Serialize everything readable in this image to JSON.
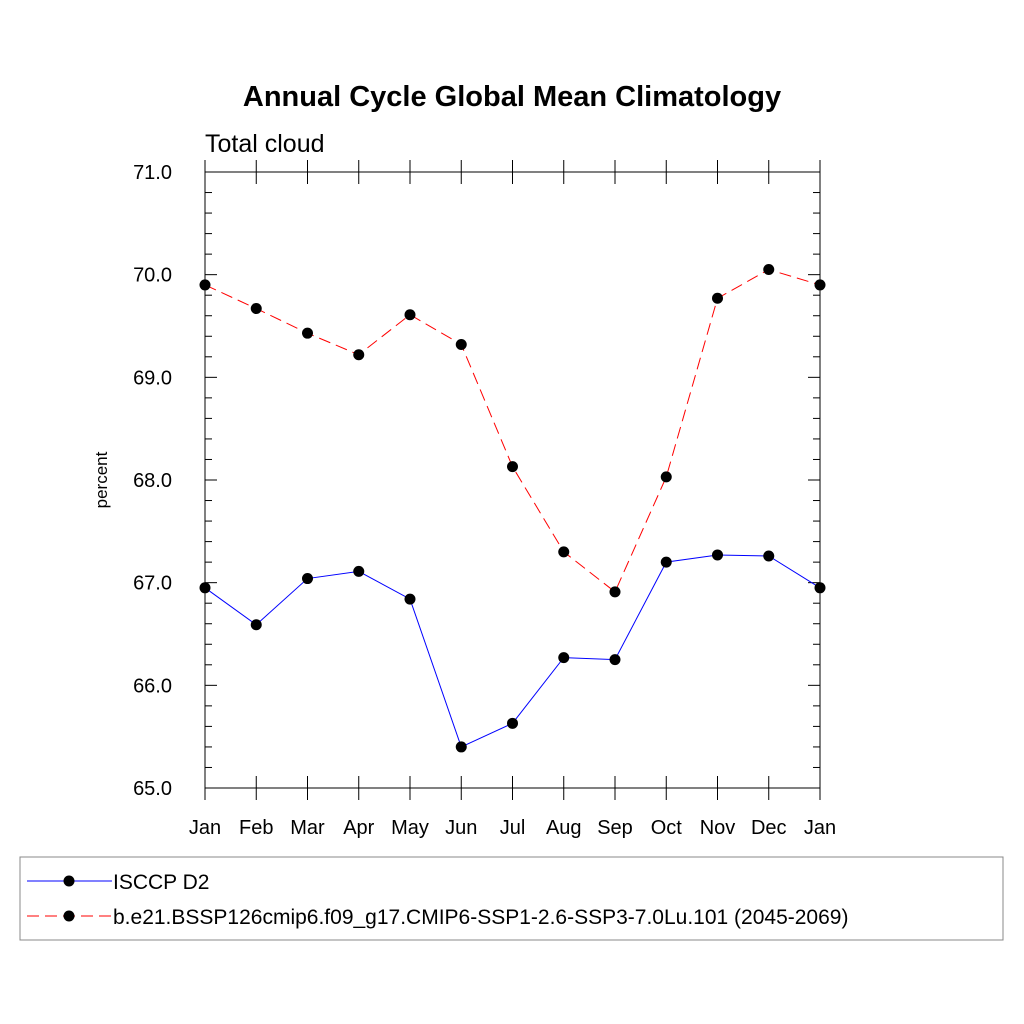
{
  "chart_data": {
    "type": "line",
    "title": "Annual Cycle Global Mean Climatology",
    "subtitle": "Total cloud",
    "xlabel": "",
    "ylabel": "percent",
    "categories": [
      "Jan",
      "Feb",
      "Mar",
      "Apr",
      "May",
      "Jun",
      "Jul",
      "Aug",
      "Sep",
      "Oct",
      "Nov",
      "Dec",
      "Jan"
    ],
    "ylim": [
      65.0,
      71.0
    ],
    "yticks": [
      65.0,
      66.0,
      67.0,
      68.0,
      69.0,
      70.0,
      71.0
    ],
    "ytick_labels": [
      "65.0",
      "66.0",
      "67.0",
      "68.0",
      "69.0",
      "70.0",
      "71.0"
    ],
    "grid": false,
    "legend_position": "bottom",
    "series": [
      {
        "name": "ISCCP D2",
        "color": "#0000ff",
        "style": "solid",
        "values": [
          66.95,
          66.59,
          67.04,
          67.11,
          66.84,
          65.4,
          65.63,
          66.27,
          66.25,
          67.2,
          67.27,
          67.26,
          66.95
        ]
      },
      {
        "name": "b.e21.BSSP126cmip6.f09_g17.CMIP6-SSP1-2.6-SSP3-7.0Lu.101 (2045-2069)",
        "color": "#ff0000",
        "style": "dashed",
        "values": [
          69.9,
          69.67,
          69.43,
          69.22,
          69.61,
          69.32,
          68.13,
          67.3,
          66.91,
          68.03,
          69.77,
          70.05,
          69.9
        ]
      }
    ]
  }
}
